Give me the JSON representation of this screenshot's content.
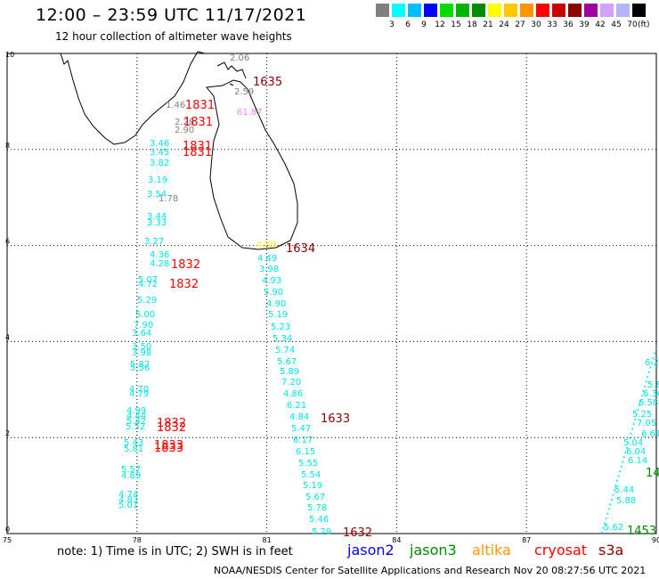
{
  "header": {
    "title": "12:00 – 23:59 UTC 11/17/2021",
    "subtitle": "12 hour collection of altimeter wave heights"
  },
  "scale": {
    "colors": [
      "#808080",
      "#00ffff",
      "#00bfff",
      "#0000ff",
      "#00dc00",
      "#00b400",
      "#008c00",
      "#ffff00",
      "#ffc800",
      "#ff9600",
      "#ff0000",
      "#c80000",
      "#8c0000",
      "#a000a0",
      "#d2a0ff",
      "#b4b4ff",
      "#000000"
    ],
    "labels": [
      "3",
      "6",
      "9",
      "12",
      "15",
      "18",
      "21",
      "24",
      "27",
      "30",
      "33",
      "36",
      "39",
      "42",
      "45",
      "70"
    ],
    "unit": "(ft)"
  },
  "axes": {
    "x_ticks": [
      "75",
      "78",
      "81",
      "84",
      "87",
      "90"
    ],
    "y_ticks": [
      "0",
      "2",
      "4",
      "6",
      "8",
      "10"
    ]
  },
  "readings": [
    {
      "v": "2.06",
      "c": "#808080"
    },
    {
      "v": "1.46",
      "c": "#808080"
    },
    {
      "v": "2.28",
      "c": "#808080"
    },
    {
      "v": "2.90",
      "c": "#808080"
    },
    {
      "v": "2.59",
      "c": "#808080"
    },
    {
      "v": "1.78",
      "c": "#808080"
    },
    {
      "v": "61.87",
      "c": "#ff80ff"
    },
    {
      "v": "3.46",
      "c": "#00e5e5"
    },
    {
      "v": "3.45",
      "c": "#00e5e5"
    },
    {
      "v": "3.82",
      "c": "#00e5e5"
    },
    {
      "v": "3.19",
      "c": "#00e5e5"
    },
    {
      "v": "3.54",
      "c": "#00e5e5"
    },
    {
      "v": "3.44",
      "c": "#00e5e5"
    },
    {
      "v": "3.33",
      "c": "#00e5e5"
    },
    {
      "v": "3.27",
      "c": "#00e5e5"
    },
    {
      "v": "4.36",
      "c": "#00e5e5"
    },
    {
      "v": "4.28",
      "c": "#00e5e5"
    },
    {
      "v": "5.07",
      "c": "#00e5e5"
    },
    {
      "v": "4.72",
      "c": "#00e5e5"
    },
    {
      "v": "5.29",
      "c": "#00e5e5"
    },
    {
      "v": "5.00",
      "c": "#00e5e5"
    },
    {
      "v": "7.90",
      "c": "#00e5e5"
    },
    {
      "v": "3.64",
      "c": "#00e5e5"
    },
    {
      "v": "3.50",
      "c": "#00e5e5"
    },
    {
      "v": "3.98",
      "c": "#00e5e5"
    },
    {
      "v": "5.82",
      "c": "#00e5e5"
    },
    {
      "v": "5.56",
      "c": "#00e5e5"
    },
    {
      "v": "4.70",
      "c": "#00e5e5"
    },
    {
      "v": "4.79",
      "c": "#00e5e5"
    },
    {
      "v": "4.99",
      "c": "#00e5e5"
    },
    {
      "v": "4.44",
      "c": "#00e5e5"
    },
    {
      "v": "5.42",
      "c": "#00e5e5"
    },
    {
      "v": "5.52",
      "c": "#00e5e5"
    },
    {
      "v": "5.43",
      "c": "#00e5e5"
    },
    {
      "v": "5.81",
      "c": "#00e5e5"
    },
    {
      "v": "5.57",
      "c": "#00e5e5"
    },
    {
      "v": "4.89",
      "c": "#00e5e5"
    },
    {
      "v": "4.74",
      "c": "#00e5e5"
    },
    {
      "v": "4.83",
      "c": "#00e5e5"
    },
    {
      "v": "5.01",
      "c": "#00e5e5"
    },
    {
      "v": "4.49",
      "c": "#00e5e5"
    },
    {
      "v": "3.98",
      "c": "#00e5e5"
    },
    {
      "v": "4.93",
      "c": "#00e5e5"
    },
    {
      "v": "5.90",
      "c": "#00e5e5"
    },
    {
      "v": "4.90",
      "c": "#00e5e5"
    },
    {
      "v": "5.19",
      "c": "#00e5e5"
    },
    {
      "v": "5.23",
      "c": "#00e5e5"
    },
    {
      "v": "5.34",
      "c": "#00e5e5"
    },
    {
      "v": "5.74",
      "c": "#00e5e5"
    },
    {
      "v": "5.67",
      "c": "#00e5e5"
    },
    {
      "v": "5.89",
      "c": "#00e5e5"
    },
    {
      "v": "7.20",
      "c": "#00e5e5"
    },
    {
      "v": "4.86",
      "c": "#00e5e5"
    },
    {
      "v": "6.21",
      "c": "#00e5e5"
    },
    {
      "v": "4.84",
      "c": "#00e5e5"
    },
    {
      "v": "5.47",
      "c": "#00e5e5"
    },
    {
      "v": "6.17",
      "c": "#00e5e5"
    },
    {
      "v": "6.15",
      "c": "#00e5e5"
    },
    {
      "v": "5.55",
      "c": "#00e5e5"
    },
    {
      "v": "5.54",
      "c": "#00e5e5"
    },
    {
      "v": "5.19",
      "c": "#00e5e5"
    },
    {
      "v": "5.67",
      "c": "#00e5e5"
    },
    {
      "v": "5.78",
      "c": "#00e5e5"
    },
    {
      "v": "5.46",
      "c": "#00e5e5"
    },
    {
      "v": "5.29",
      "c": "#00e5e5"
    },
    {
      "v": "5.04",
      "c": "#00e5e5"
    },
    {
      "v": "6.04",
      "c": "#00e5e5"
    },
    {
      "v": "6.14",
      "c": "#00e5e5"
    },
    {
      "v": "5.44",
      "c": "#00e5e5"
    },
    {
      "v": "5.88",
      "c": "#00e5e5"
    },
    {
      "v": "5.62",
      "c": "#00e5e5"
    },
    {
      "v": "5.25",
      "c": "#00e5e5"
    },
    {
      "v": "6.58",
      "c": "#00e5e5"
    },
    {
      "v": "7.05",
      "c": "#00e5e5"
    },
    {
      "v": "6.36",
      "c": "#00e5e5"
    },
    {
      "v": "6.61",
      "c": "#00e5e5"
    },
    {
      "v": "5.84",
      "c": "#00e5e5"
    },
    {
      "v": "6.23",
      "c": "#00e5e5"
    },
    {
      "v": "4.50",
      "c": "#ffff00"
    }
  ],
  "times": [
    {
      "v": "1635",
      "c": "#8c0000"
    },
    {
      "v": "1831",
      "c": "#ff0000"
    },
    {
      "v": "1831",
      "c": "#ff0000"
    },
    {
      "v": "1831",
      "c": "#ff0000"
    },
    {
      "v": "1831",
      "c": "#ff0000"
    },
    {
      "v": "1634",
      "c": "#8c0000"
    },
    {
      "v": "1832",
      "c": "#ff0000"
    },
    {
      "v": "1832",
      "c": "#ff0000"
    },
    {
      "v": "1633",
      "c": "#8c0000"
    },
    {
      "v": "1832",
      "c": "#ff0000"
    },
    {
      "v": "1832",
      "c": "#ff0000"
    },
    {
      "v": "1833",
      "c": "#ff0000"
    },
    {
      "v": "1833",
      "c": "#ff0000"
    },
    {
      "v": "1632",
      "c": "#8c0000"
    },
    {
      "v": "1453",
      "c": "#008c00"
    },
    {
      "v": "14",
      "c": "#008c00"
    }
  ],
  "footer": {
    "note": "note: 1) Time is in UTC; 2) SWH is in feet",
    "credit": "NOAA/NESDIS Center for Satellite Applications and Research    Nov 20 08:27:56 UTC 2021",
    "satellites": [
      {
        "name": "jason2",
        "color": "#0000ff"
      },
      {
        "name": "jason3",
        "color": "#008c00"
      },
      {
        "name": "altika",
        "color": "#ff9600"
      },
      {
        "name": "cryosat",
        "color": "#ff0000"
      },
      {
        "name": "s3a",
        "color": "#8c0000"
      }
    ]
  }
}
